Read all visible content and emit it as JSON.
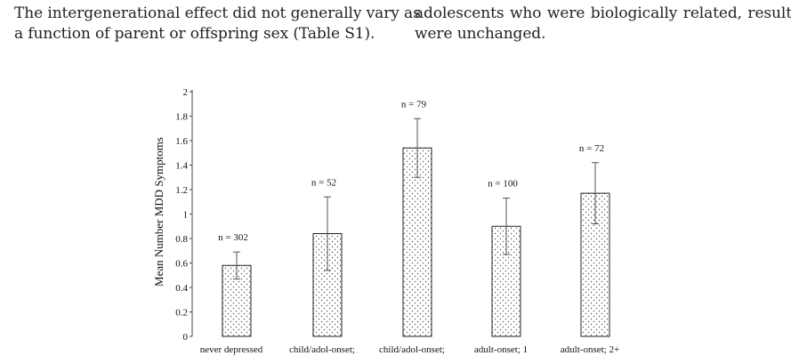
{
  "text": {
    "left_lines": [
      "The intergenerational effect did not generally vary as",
      "a function of parent or offspring sex (Table S1)."
    ],
    "right_lines": [
      "adolescents who were biologically related, results",
      "were unchanged."
    ]
  },
  "chart_data": {
    "type": "bar",
    "title": "",
    "xlabel": "",
    "ylabel": "Mean Number MDD Symptoms",
    "ylim": [
      0,
      2
    ],
    "yticks": [
      "0",
      "0.2",
      "0.4",
      "0.6",
      "0.8",
      "1",
      "1.2",
      "1.4",
      "1.6",
      "1.8",
      "2"
    ],
    "categories": [
      "never depressed",
      "child/adol-onset;",
      "child/adol-onset;",
      "adult-onset; 1",
      "adult-onset; 2+"
    ],
    "values": [
      0.58,
      0.84,
      1.54,
      0.9,
      1.17
    ],
    "error": [
      0.11,
      0.3,
      0.24,
      0.23,
      0.25
    ],
    "annotations": [
      "n = 302",
      "n = 52",
      "n = 79",
      "n = 100",
      "n = 72"
    ],
    "grid": false,
    "bar_fill": "dotted"
  }
}
